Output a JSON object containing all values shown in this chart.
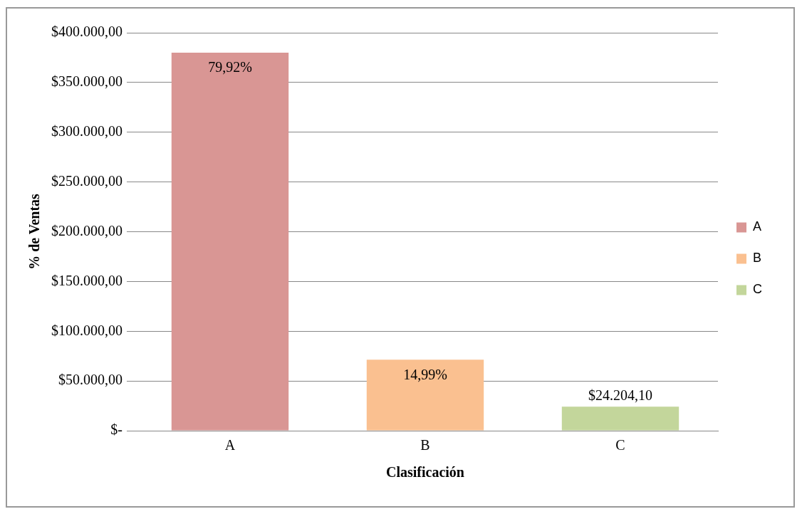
{
  "chart_data": {
    "type": "bar",
    "xlabel": "Clasificación",
    "ylabel": "% de Ventas",
    "categories": [
      "A",
      "B",
      "C"
    ],
    "series": [
      {
        "name": "A",
        "color": "#d99694",
        "values": [
          380000,
          null,
          null
        ]
      },
      {
        "name": "B",
        "color": "#fac090",
        "values": [
          null,
          71300,
          null
        ]
      },
      {
        "name": "C",
        "color": "#c3d69b",
        "values": [
          null,
          null,
          24204.1
        ],
        "value_labels": [
          null,
          null,
          "$24.204,10"
        ]
      }
    ],
    "ylim": [
      0,
      400000
    ],
    "yticks": [
      {
        "value": 0,
        "label": "$-"
      },
      {
        "value": 50000,
        "label": "$50.000,00"
      },
      {
        "value": 100000,
        "label": "$100.000,00"
      },
      {
        "value": 150000,
        "label": "$150.000,00"
      },
      {
        "value": 200000,
        "label": "$200.000,00"
      },
      {
        "value": 250000,
        "label": "$250.000,00"
      },
      {
        "value": 300000,
        "label": "$300.000,00"
      },
      {
        "value": 350000,
        "label": "$350.000,00"
      },
      {
        "value": 400000,
        "label": "$400.000,00"
      }
    ],
    "annotations": [
      {
        "text": "79,92%",
        "x": "A",
        "y": 380000
      },
      {
        "text": "14,99%",
        "x": "B",
        "y": 71300
      }
    ],
    "grid": "y",
    "legend": "right"
  }
}
